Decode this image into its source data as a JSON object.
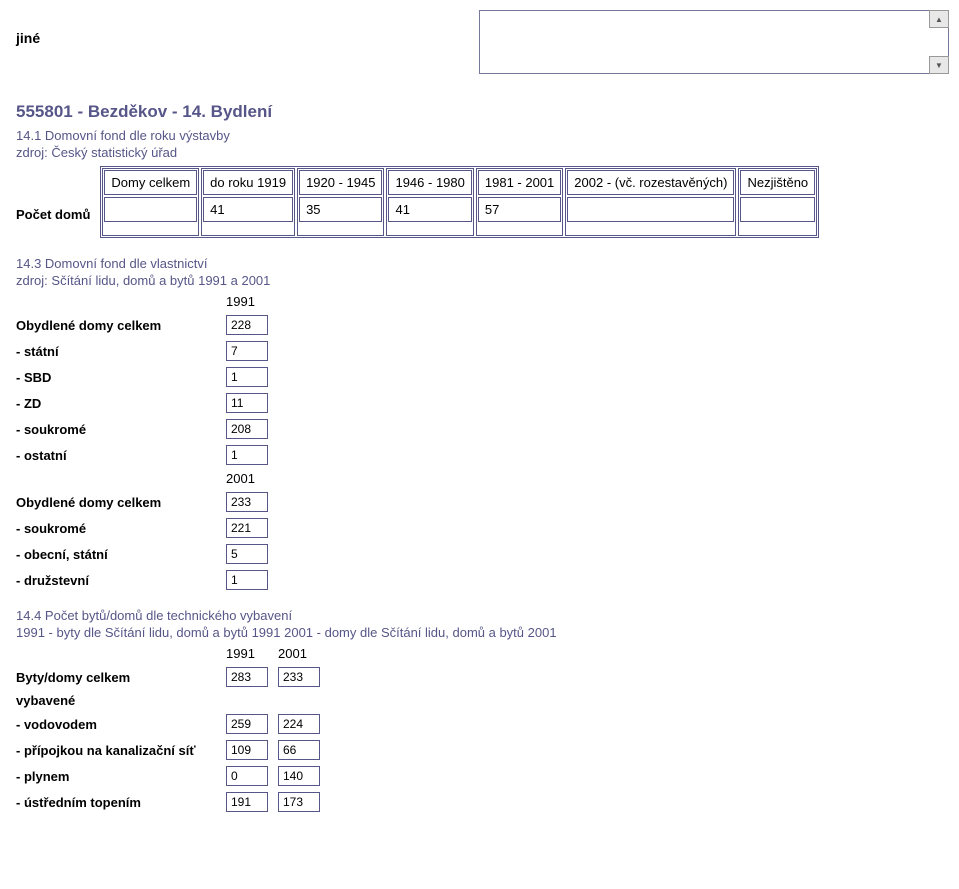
{
  "top": {
    "jine": "jiné"
  },
  "title": "555801 - Bezděkov - 14. Bydlení",
  "section141": {
    "title": "14.1 Domovní fond dle roku výstavby",
    "source": "zdroj: Český statistický úřad",
    "columns": [
      "Domy celkem",
      "do roku 1919",
      "1920 - 1945",
      "1946 - 1980",
      "1981 - 2001",
      "2002 - (vč. rozestavěných)",
      "Nezjištěno"
    ],
    "row_label": "Počet domů",
    "values": [
      "",
      "41",
      "35",
      "41",
      "57",
      "",
      ""
    ]
  },
  "section143": {
    "title": "14.3 Domovní fond dle vlastnictví",
    "source": "zdroj: Sčítání lidu, domů a bytů 1991 a 2001",
    "year1": "1991",
    "year2": "2001",
    "rows1": [
      {
        "label": "Obydlené domy celkem",
        "value": "228"
      },
      {
        "label": "- státní",
        "value": "7"
      },
      {
        "label": "- SBD",
        "value": "1"
      },
      {
        "label": "- ZD",
        "value": "11"
      },
      {
        "label": "- soukromé",
        "value": "208"
      },
      {
        "label": "- ostatní",
        "value": "1"
      }
    ],
    "rows2": [
      {
        "label": "Obydlené domy celkem",
        "value": "233"
      },
      {
        "label": "- soukromé",
        "value": "221"
      },
      {
        "label": "- obecní, státní",
        "value": "5"
      },
      {
        "label": "- družstevní",
        "value": "1"
      }
    ]
  },
  "section144": {
    "title": "14.4 Počet bytů/domů dle technického vybavení",
    "source": "1991 - byty dle Sčítání lidu, domů a bytů 1991 2001 - domy dle Sčítání lidu, domů a bytů 2001",
    "year1": "1991",
    "year2": "2001",
    "rows": [
      {
        "label": "Byty/domy celkem",
        "v1": "283",
        "v2": "233"
      },
      {
        "label": "vybavené",
        "v1": null,
        "v2": null
      },
      {
        "label": "- vodovodem",
        "v1": "259",
        "v2": "224"
      },
      {
        "label": "- přípojkou na kanalizační síť",
        "v1": "109",
        "v2": "66"
      },
      {
        "label": "- plynem",
        "v1": "0",
        "v2": "140"
      },
      {
        "label": "- ústředním topením",
        "v1": "191",
        "v2": "173"
      }
    ]
  }
}
